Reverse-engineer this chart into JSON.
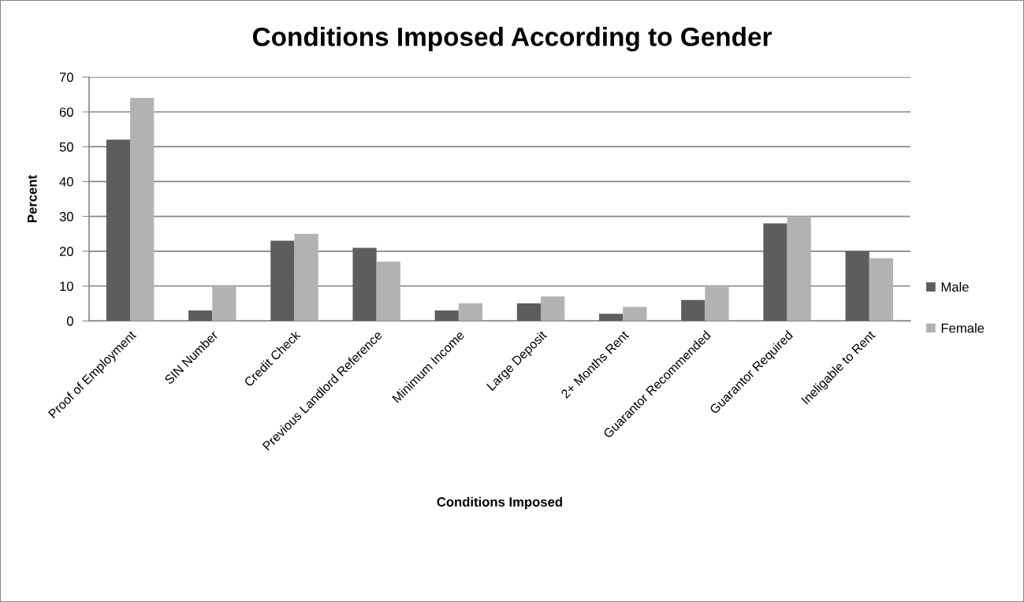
{
  "chart_data": {
    "type": "bar",
    "title": "Conditions Imposed According to Gender",
    "xlabel": "Conditions Imposed",
    "ylabel": "Percent",
    "categories": [
      "Proof of Employment",
      "SIN Number",
      "Credit Check",
      "Previous Landlord Reference",
      "Minimum Income",
      "Large Deposit",
      "2+ Months Rent",
      "Guarantor Recommended",
      "Guarantor Required",
      "Ineligable to Rent"
    ],
    "series": [
      {
        "name": "Male",
        "color": "#5d5d5d",
        "values": [
          52,
          3,
          23,
          21,
          3,
          5,
          2,
          6,
          28,
          20
        ]
      },
      {
        "name": "Female",
        "color": "#b2b2b2",
        "values": [
          64,
          10,
          25,
          17,
          5,
          7,
          4,
          10,
          30,
          18
        ]
      }
    ],
    "ylim": [
      0,
      70
    ],
    "yticks": [
      0,
      10,
      20,
      30,
      40,
      50,
      60,
      70
    ],
    "grid": "y",
    "legend": "right"
  }
}
